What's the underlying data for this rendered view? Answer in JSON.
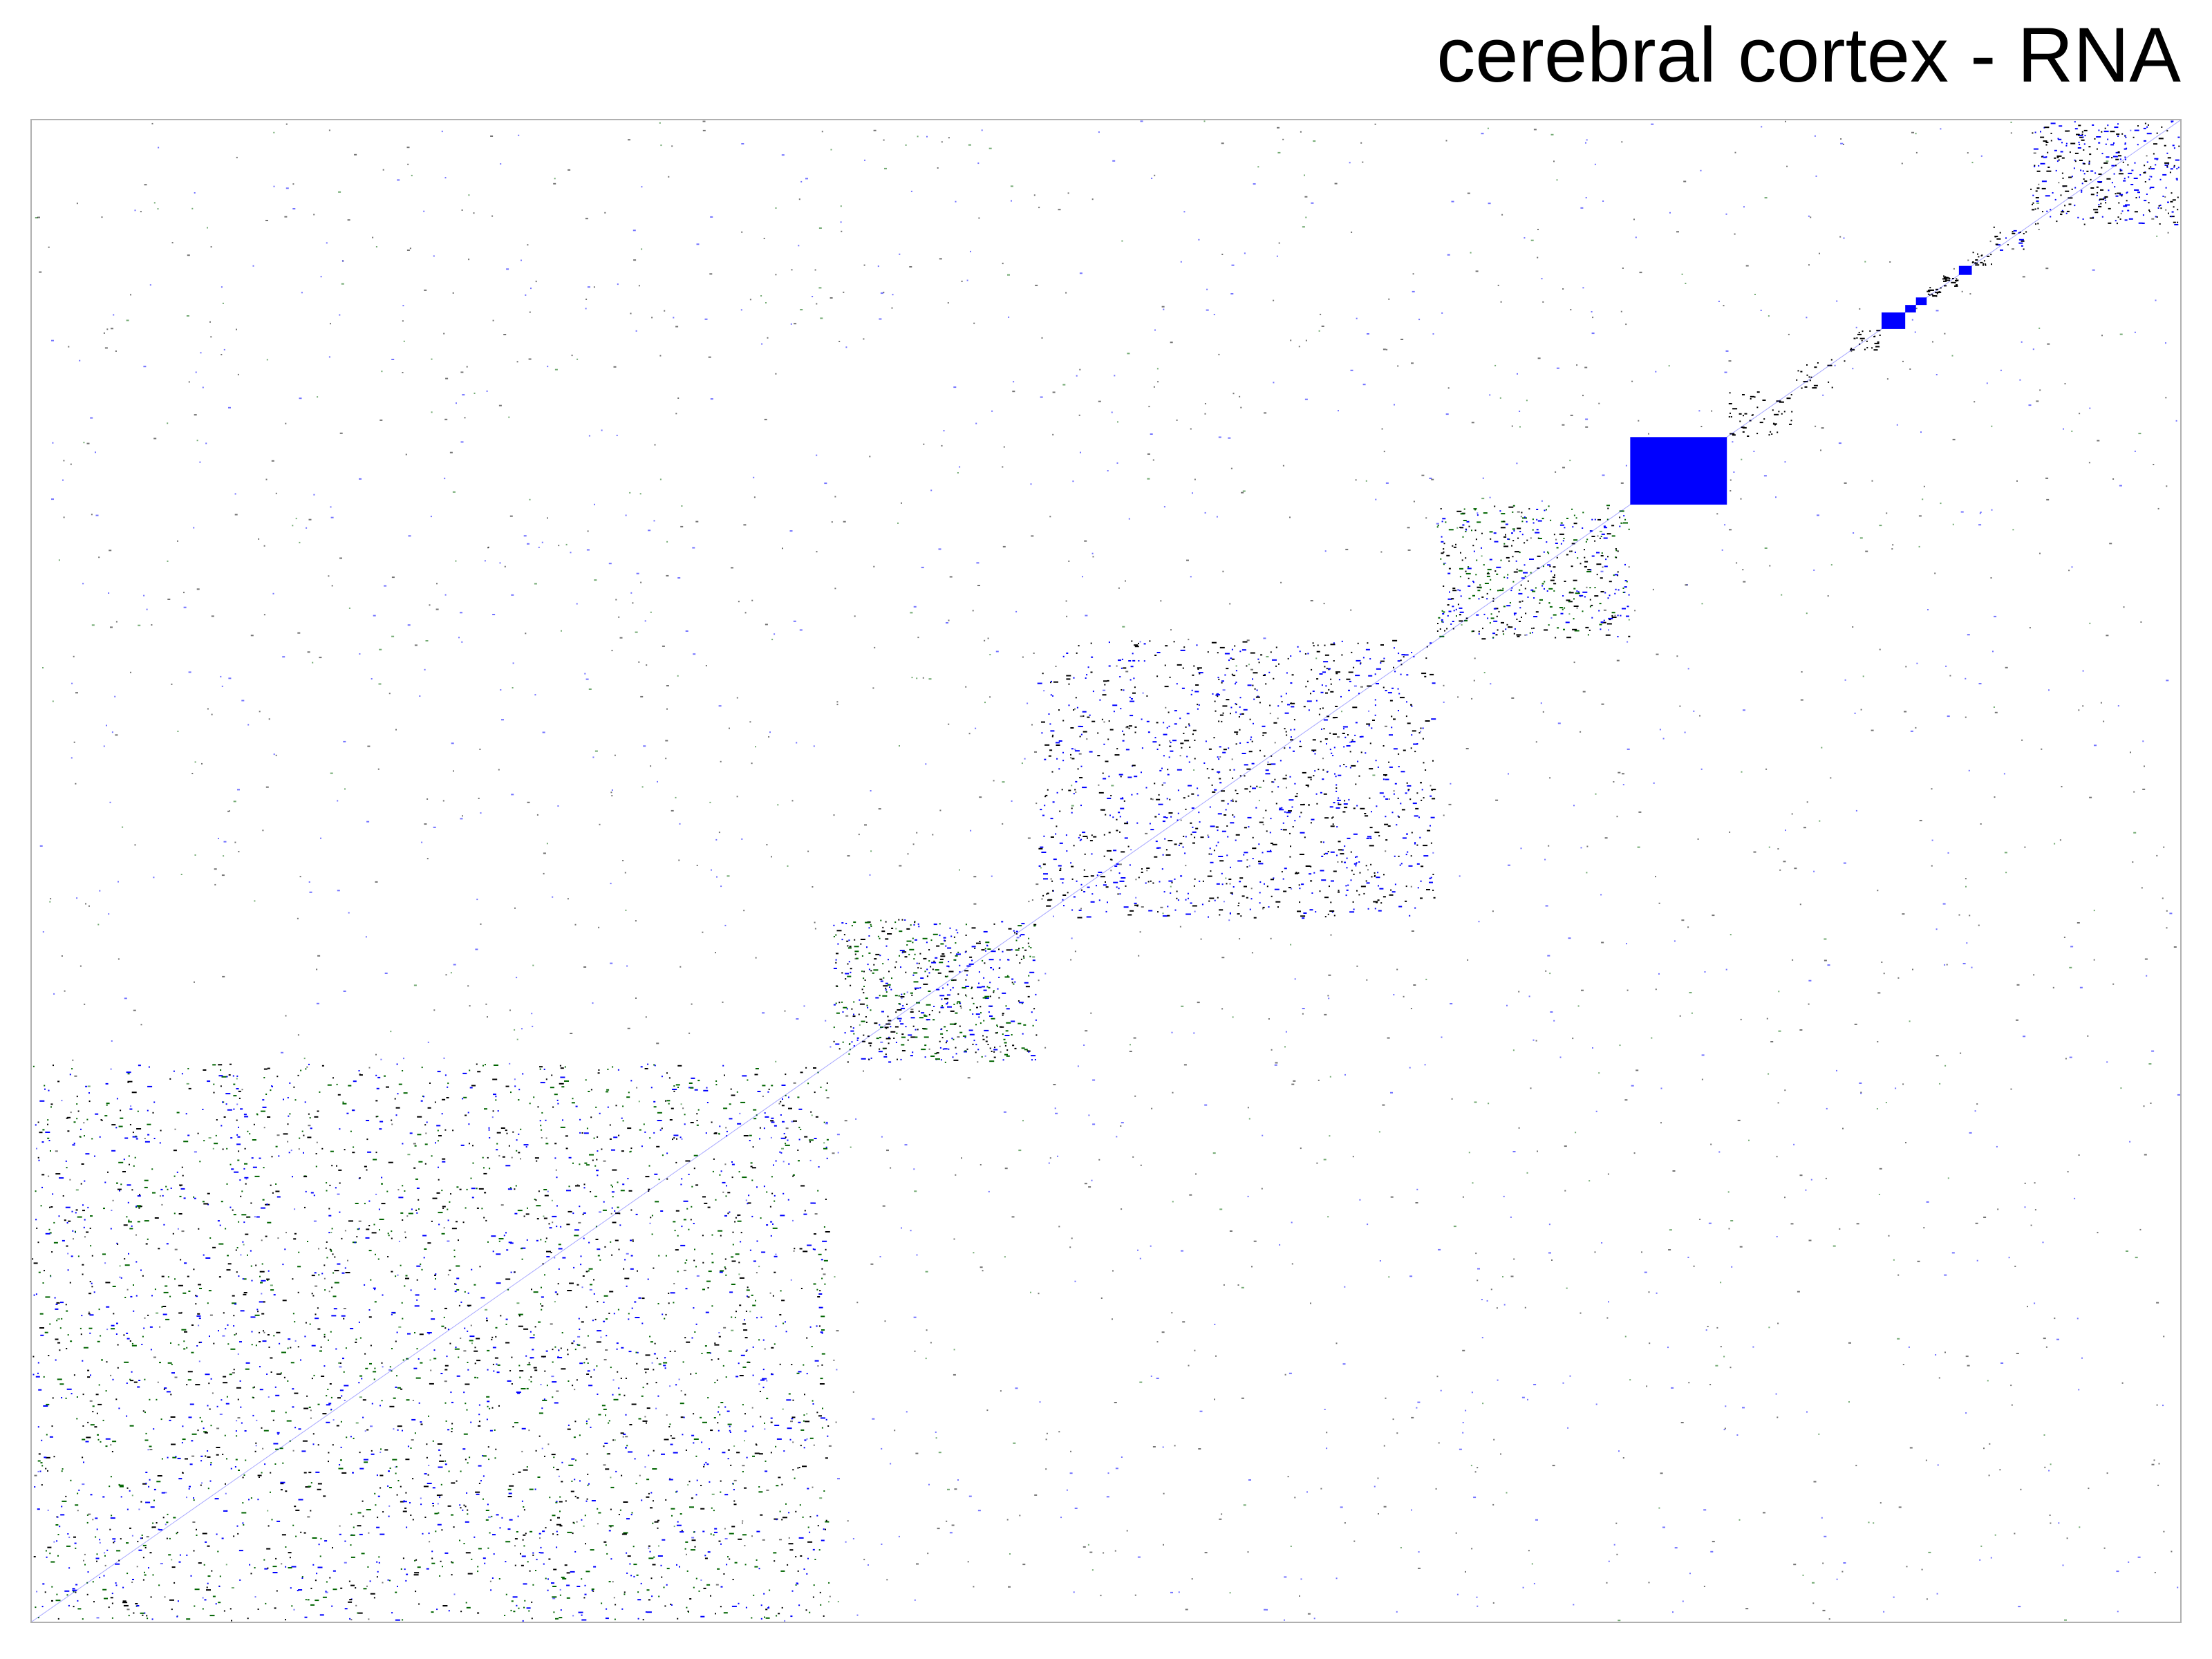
{
  "chart_data": {
    "type": "heatmap",
    "title": "cerebral cortex - RNA",
    "xlabel": "",
    "ylabel": "",
    "grid": false,
    "legend": "none",
    "colors": {
      "background": "#ffffff",
      "frame": "#b0b0b0",
      "black": "#000000",
      "blue": "#0000ff",
      "green": "#006400"
    },
    "matrix_extent": [
      0,
      1
    ],
    "blocks": [
      {
        "name": "block-1",
        "range": [
          0.0,
          0.372
        ],
        "colors": [
          "#0000ff",
          "#000000",
          "#006400"
        ],
        "density": 0.2
      },
      {
        "name": "block-2",
        "range": [
          0.372,
          0.468
        ],
        "colors": [
          "#006400",
          "#000000",
          "#0000ff"
        ],
        "density": 0.55
      },
      {
        "name": "block-3",
        "range": [
          0.468,
          0.654
        ],
        "colors": [
          "#000000",
          "#0000ff"
        ],
        "density": 0.3
      },
      {
        "name": "block-4",
        "range": [
          0.654,
          0.744
        ],
        "colors": [
          "#006400",
          "#000000",
          "#0000ff"
        ],
        "density": 0.5
      },
      {
        "name": "block-5",
        "range": [
          0.744,
          0.789
        ],
        "colors": [
          "#0000ff"
        ],
        "density": 1.0
      },
      {
        "name": "block-6",
        "range": [
          0.789,
          0.82
        ],
        "colors": [
          "#000000"
        ],
        "density": 0.45
      },
      {
        "name": "block-7",
        "range": [
          0.82,
          0.846
        ],
        "colors": [
          "#000000"
        ],
        "density": 0.12
      },
      {
        "name": "block-8",
        "range": [
          0.846,
          0.861
        ],
        "colors": [
          "#000000"
        ],
        "density": 0.9
      },
      {
        "name": "block-9",
        "range": [
          0.861,
          0.872
        ],
        "colors": [
          "#0000ff"
        ],
        "density": 1.0
      },
      {
        "name": "block-10",
        "range": [
          0.872,
          0.877
        ],
        "colors": [
          "#0000ff"
        ],
        "density": 1.0
      },
      {
        "name": "block-11",
        "range": [
          0.877,
          0.882
        ],
        "colors": [
          "#0000ff"
        ],
        "density": 1.0
      },
      {
        "name": "block-12",
        "range": [
          0.882,
          0.889
        ],
        "colors": [
          "#000000"
        ],
        "density": 0.85
      },
      {
        "name": "block-13",
        "range": [
          0.889,
          0.897
        ],
        "colors": [
          "#000000"
        ],
        "density": 0.85
      },
      {
        "name": "block-14",
        "range": [
          0.897,
          0.903
        ],
        "colors": [
          "#0000ff"
        ],
        "density": 1.0
      },
      {
        "name": "block-15",
        "range": [
          0.903,
          0.913
        ],
        "colors": [
          "#000000"
        ],
        "density": 0.8
      },
      {
        "name": "block-16",
        "range": [
          0.913,
          0.93
        ],
        "colors": [
          "#0000ff",
          "#000000"
        ],
        "density": 0.7
      },
      {
        "name": "block-17",
        "range": [
          0.93,
          1.0
        ],
        "colors": [
          "#0000ff",
          "#000000"
        ],
        "density": 0.6
      }
    ]
  }
}
